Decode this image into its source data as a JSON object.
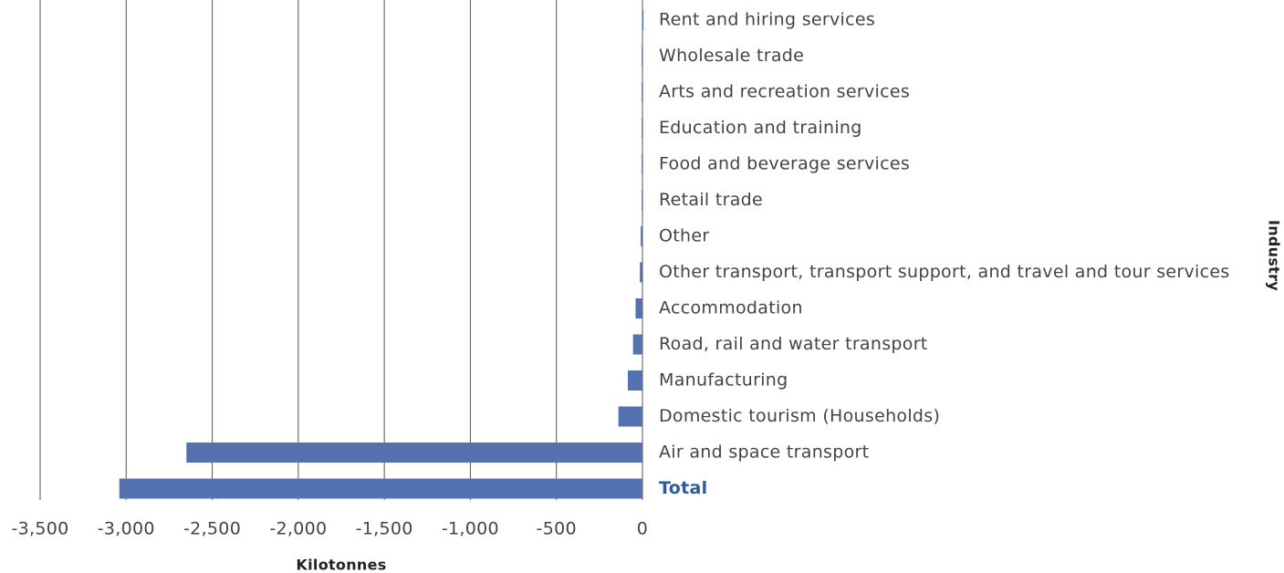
{
  "chart_data": {
    "type": "barh",
    "categories": [
      "Rent and hiring services",
      "Wholesale trade",
      "Arts and recreation services",
      "Education and training",
      "Food and beverage services",
      "Retail trade",
      "Other",
      "Other transport, transport support, and travel and tour services",
      "Accommodation",
      "Road, rail and water transport",
      "Manufacturing",
      "Domestic tourism (Households)",
      "Air and space transport",
      "Total"
    ],
    "values": [
      -2,
      -5,
      -5,
      -5,
      -5,
      -5,
      -10,
      -15,
      -40,
      -55,
      -85,
      -140,
      -2650,
      -3040
    ],
    "color": "#5572b0",
    "xlabel": "Kilotonnes",
    "ylabel": "Industry",
    "xlim": [
      -3500,
      0
    ],
    "xticks": [
      {
        "value": -3500,
        "label": "-3,500"
      },
      {
        "value": -3000,
        "label": "-3,000"
      },
      {
        "value": -2500,
        "label": "-2,500"
      },
      {
        "value": -2000,
        "label": "-2,000"
      },
      {
        "value": -1500,
        "label": "-1,500"
      },
      {
        "value": -1000,
        "label": "-1,000"
      },
      -500,
      0
    ],
    "grid": true
  }
}
